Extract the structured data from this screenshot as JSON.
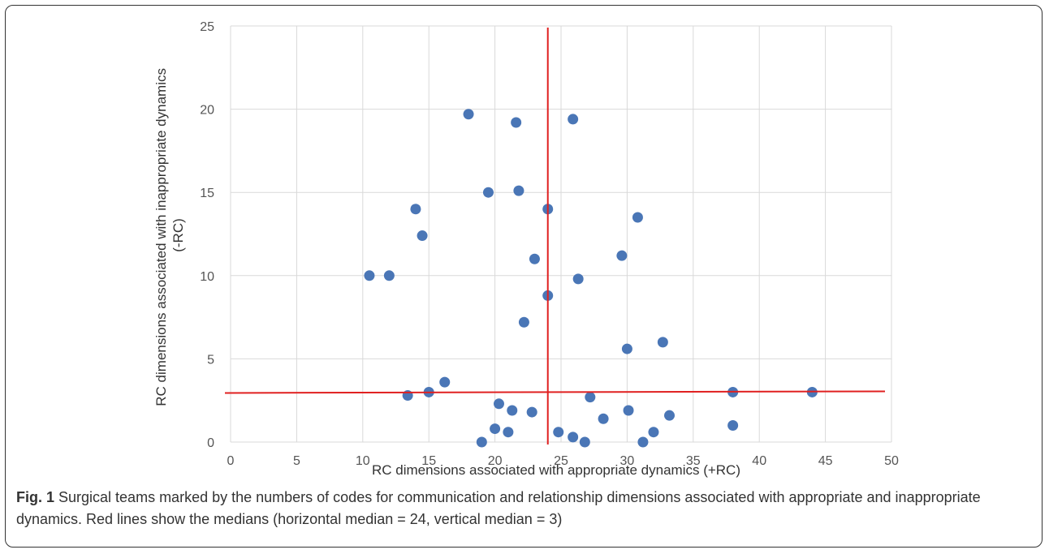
{
  "chart_data": {
    "type": "scatter",
    "xlabel": "RC dimensions associated with appropriate dynamics (+RC)",
    "ylabel": "RC dimensions associated with inappropriate dynamics (-RC)",
    "xlim": [
      0,
      50
    ],
    "ylim": [
      0,
      25
    ],
    "xticks": [
      "0",
      "5",
      "10",
      "15",
      "20",
      "25",
      "30",
      "35",
      "40",
      "45",
      "50"
    ],
    "yticks": [
      "0",
      "5",
      "10",
      "15",
      "20",
      "25"
    ],
    "grid": true,
    "point_color": "#4a76b6",
    "median_line_color": "#e02020",
    "median_x": 24,
    "median_y": 3,
    "points": [
      [
        18,
        19.7
      ],
      [
        21.6,
        19.2
      ],
      [
        25.9,
        19.4
      ],
      [
        19.5,
        15
      ],
      [
        21.8,
        15.1
      ],
      [
        14,
        14
      ],
      [
        24,
        14
      ],
      [
        30.8,
        13.5
      ],
      [
        14.5,
        12.4
      ],
      [
        23,
        11
      ],
      [
        29.6,
        11.2
      ],
      [
        10.5,
        10
      ],
      [
        12,
        10
      ],
      [
        26.3,
        9.8
      ],
      [
        24,
        8.8
      ],
      [
        22.2,
        7.2
      ],
      [
        30,
        5.6
      ],
      [
        32.7,
        6
      ],
      [
        16.2,
        3.6
      ],
      [
        13.4,
        2.8
      ],
      [
        15,
        3
      ],
      [
        27.2,
        2.7
      ],
      [
        38,
        3
      ],
      [
        44,
        3
      ],
      [
        20.3,
        2.3
      ],
      [
        21.3,
        1.9
      ],
      [
        22.8,
        1.8
      ],
      [
        30.1,
        1.9
      ],
      [
        33.2,
        1.6
      ],
      [
        28.2,
        1.4
      ],
      [
        38,
        1
      ],
      [
        20,
        0.8
      ],
      [
        21,
        0.6
      ],
      [
        24.8,
        0.6
      ],
      [
        25.9,
        0.3
      ],
      [
        32,
        0.6
      ],
      [
        19,
        0
      ],
      [
        26.8,
        0
      ],
      [
        31.2,
        0
      ]
    ]
  },
  "caption": {
    "label": "Fig. 1",
    "text": " Surgical teams marked by the numbers of codes for communication and relationship dimensions associated with appropriate and inappropriate dynamics. Red lines show the medians (horizontal median = 24, vertical median = 3)"
  }
}
